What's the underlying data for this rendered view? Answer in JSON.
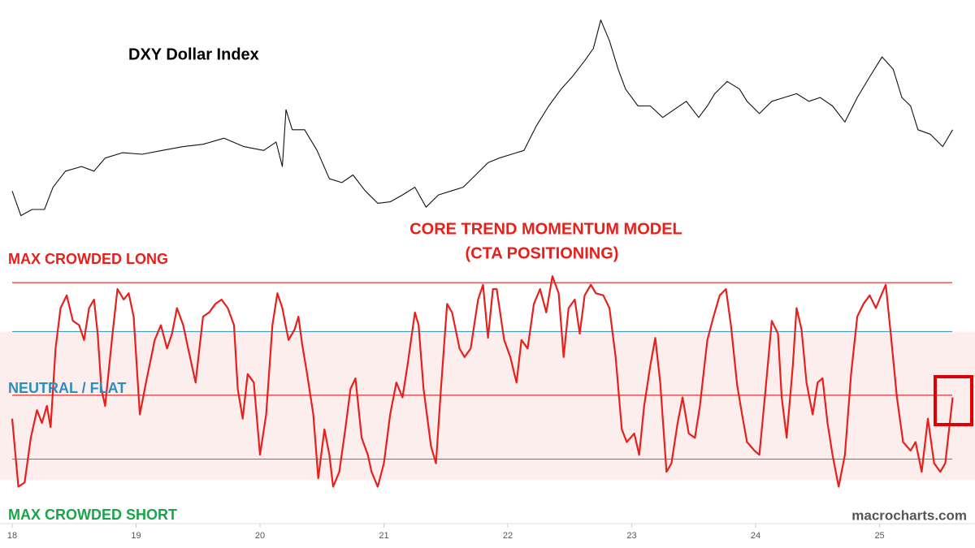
{
  "chart_data": [
    {
      "type": "line",
      "title": "DXY Dollar Index",
      "x": [
        18.0,
        18.07,
        18.16,
        18.26,
        18.33,
        18.43,
        18.56,
        18.66,
        18.75,
        18.89,
        19.05,
        19.21,
        19.38,
        19.54,
        19.71,
        19.87,
        20.03,
        20.13,
        20.18,
        20.21,
        20.26,
        20.36,
        20.46,
        20.56,
        20.66,
        20.75,
        20.85,
        20.95,
        21.05,
        21.15,
        21.25,
        21.34,
        21.44,
        21.54,
        21.64,
        21.74,
        21.84,
        21.93,
        22.03,
        22.13,
        22.23,
        22.33,
        22.43,
        22.52,
        22.62,
        22.69,
        22.75,
        22.82,
        22.89,
        22.95,
        23.05,
        23.15,
        23.25,
        23.34,
        23.44,
        23.54,
        23.61,
        23.67,
        23.77,
        23.87,
        23.93,
        24.03,
        24.13,
        24.23,
        24.33,
        24.43,
        24.52,
        24.62,
        24.72,
        24.82,
        24.92,
        25.02,
        25.11,
        25.18,
        25.25,
        25.31,
        25.41,
        25.51,
        25.59
      ],
      "series": [
        {
          "color": "#111111",
          "values": [
            92.2,
            89.0,
            89.8,
            89.8,
            92.7,
            94.8,
            95.4,
            94.8,
            96.5,
            97.2,
            97.0,
            97.5,
            98.0,
            98.3,
            99.1,
            98.0,
            97.5,
            98.6,
            95.4,
            102.8,
            100.2,
            100.2,
            97.5,
            93.8,
            93.3,
            94.3,
            92.2,
            90.6,
            90.8,
            91.7,
            92.7,
            90.1,
            91.7,
            92.2,
            92.7,
            94.3,
            95.9,
            96.5,
            97.0,
            97.5,
            100.7,
            103.3,
            105.5,
            107.1,
            109.2,
            110.8,
            114.5,
            111.8,
            108.1,
            105.5,
            103.3,
            103.3,
            101.8,
            102.8,
            103.9,
            101.8,
            103.3,
            104.9,
            106.5,
            105.5,
            103.9,
            102.3,
            103.9,
            104.4,
            104.9,
            103.9,
            104.4,
            103.3,
            101.2,
            104.4,
            107.1,
            109.7,
            108.1,
            104.4,
            103.3,
            100.2,
            99.6,
            98.0,
            100.2
          ]
        }
      ],
      "xlim": [
        18,
        25.77
      ],
      "ylim": [
        88,
        115
      ]
    },
    {
      "type": "line",
      "title": [
        "CORE TREND MOMENTUM MODEL",
        "(CTA POSITIONING)"
      ],
      "title_color": "#e8201c",
      "x": [
        18.0,
        18.05,
        18.1,
        18.15,
        18.2,
        18.24,
        18.28,
        18.31,
        18.35,
        18.39,
        18.44,
        18.49,
        18.54,
        18.58,
        18.62,
        18.66,
        18.69,
        18.72,
        18.75,
        18.81,
        18.85,
        18.9,
        18.94,
        18.98,
        19.03,
        19.08,
        19.15,
        19.2,
        19.25,
        19.29,
        19.33,
        19.38,
        19.42,
        19.48,
        19.54,
        19.59,
        19.64,
        19.69,
        19.74,
        19.79,
        19.82,
        19.86,
        19.9,
        19.95,
        20.0,
        20.05,
        20.1,
        20.14,
        20.18,
        20.23,
        20.28,
        20.31,
        20.34,
        20.38,
        20.43,
        20.47,
        20.52,
        20.56,
        20.59,
        20.64,
        20.69,
        20.73,
        20.77,
        20.82,
        20.87,
        20.9,
        20.95,
        21.0,
        21.05,
        21.1,
        21.15,
        21.19,
        21.25,
        21.28,
        21.32,
        21.38,
        21.42,
        21.46,
        21.51,
        21.55,
        21.61,
        21.65,
        21.7,
        21.76,
        21.8,
        21.84,
        21.88,
        21.91,
        21.97,
        22.02,
        22.07,
        22.11,
        22.16,
        22.21,
        22.26,
        22.31,
        22.36,
        22.41,
        22.45,
        22.49,
        22.54,
        22.58,
        22.62,
        22.67,
        22.71,
        22.77,
        22.82,
        22.87,
        22.92,
        22.96,
        23.02,
        23.06,
        23.1,
        23.15,
        23.19,
        23.23,
        23.28,
        23.32,
        23.37,
        23.41,
        23.46,
        23.51,
        23.55,
        23.61,
        23.66,
        23.71,
        23.76,
        23.8,
        23.85,
        23.89,
        23.93,
        23.99,
        24.03,
        24.08,
        24.13,
        24.18,
        24.21,
        24.25,
        24.3,
        24.33,
        24.37,
        24.41,
        24.46,
        24.5,
        24.54,
        24.58,
        24.62,
        24.67,
        24.72,
        24.77,
        24.82,
        24.87,
        24.92,
        24.97,
        25.02,
        25.05,
        25.09,
        25.14,
        25.19,
        25.25,
        25.29,
        25.34,
        25.39,
        25.44,
        25.49,
        25.53,
        25.59
      ],
      "series": [
        {
          "color": "#e8201c",
          "values": [
            36,
            4,
            6,
            27,
            40,
            34,
            42,
            32,
            69,
            88,
            94,
            82,
            80,
            73,
            88,
            92,
            76,
            50,
            42,
            76,
            97,
            92,
            95,
            84,
            38,
            53,
            73,
            80,
            69,
            76,
            88,
            80,
            69,
            53,
            84,
            86,
            90,
            92,
            88,
            80,
            50,
            36,
            57,
            53,
            19,
            38,
            80,
            95,
            88,
            73,
            78,
            84,
            71,
            57,
            38,
            8,
            31,
            19,
            4,
            11,
            32,
            50,
            55,
            27,
            19,
            11,
            4,
            15,
            38,
            53,
            46,
            61,
            86,
            80,
            50,
            23,
            15,
            50,
            90,
            86,
            69,
            65,
            69,
            92,
            99,
            74,
            97,
            97,
            73,
            65,
            53,
            73,
            69,
            90,
            97,
            86,
            103,
            95,
            65,
            88,
            92,
            76,
            94,
            99,
            95,
            94,
            88,
            65,
            31,
            25,
            29,
            19,
            42,
            61,
            74,
            53,
            11,
            15,
            34,
            46,
            29,
            27,
            42,
            73,
            84,
            94,
            97,
            80,
            52,
            38,
            25,
            21,
            19,
            50,
            82,
            76,
            46,
            27,
            61,
            88,
            78,
            53,
            38,
            53,
            55,
            34,
            19,
            4,
            19,
            57,
            84,
            90,
            94,
            88,
            95,
            99,
            76,
            46,
            25,
            21,
            25,
            11,
            36,
            15,
            11,
            15,
            46
          ]
        }
      ],
      "xlim": [
        18,
        25.77
      ],
      "ylim": [
        0,
        105
      ],
      "xticks": [
        18,
        19,
        20,
        21,
        22,
        23,
        24,
        25
      ],
      "hlines": [
        {
          "value": 100,
          "color": "#e00000"
        },
        {
          "value": 77,
          "color": "#2a8fbd"
        },
        {
          "value": 47,
          "color": "#e00000"
        },
        {
          "value": 17,
          "color": "#2a8fbd"
        }
      ],
      "band": {
        "range": [
          7,
          77
        ],
        "color": "#fdeeee"
      },
      "annotations": [
        {
          "text": "MAX CROWDED LONG",
          "color": "#e8201c"
        },
        {
          "text": "NEUTRAL / FLAT",
          "color": "#2a8fbd"
        },
        {
          "text": "MAX CROWDED SHORT",
          "color": "#1aa54a"
        }
      ],
      "watermark": "macrocharts.com"
    }
  ]
}
